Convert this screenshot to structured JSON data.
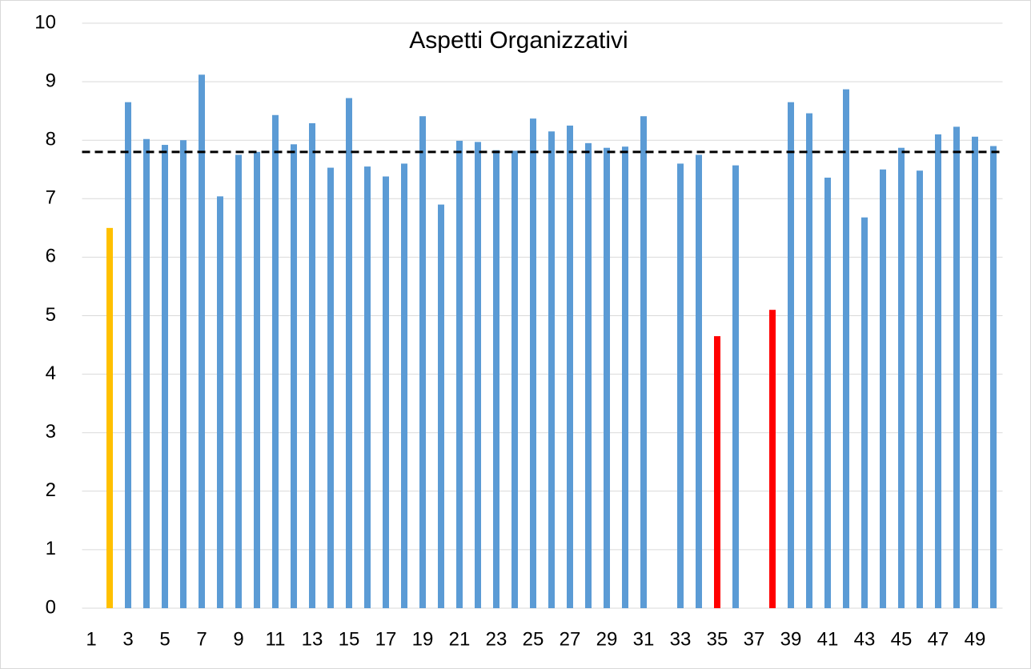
{
  "chart_data": {
    "type": "bar",
    "title": "Aspetti Organizzativi",
    "categories": [
      "1",
      null,
      "3",
      null,
      "5",
      null,
      "7",
      null,
      "9",
      null,
      "11",
      null,
      "13",
      null,
      "15",
      null,
      "17",
      null,
      "19",
      null,
      "21",
      null,
      "23",
      null,
      "25",
      null,
      "27",
      null,
      "29",
      null,
      "31",
      null,
      "33",
      null,
      "35",
      null,
      "37",
      null,
      "39",
      null,
      "41",
      null,
      "43",
      null,
      "45",
      null,
      "47",
      null,
      "49",
      null
    ],
    "values": [
      null,
      6.5,
      8.65,
      8.02,
      7.92,
      8.0,
      9.12,
      7.04,
      7.75,
      7.8,
      8.43,
      7.93,
      8.29,
      7.53,
      8.72,
      7.55,
      7.38,
      7.6,
      8.41,
      6.9,
      7.99,
      7.97,
      7.83,
      7.82,
      8.37,
      8.15,
      8.25,
      7.95,
      7.87,
      7.89,
      8.41,
      null,
      7.6,
      7.75,
      4.65,
      7.57,
      null,
      5.1,
      8.65,
      8.46,
      7.36,
      8.87,
      6.68,
      7.5,
      7.87,
      7.48,
      8.1,
      8.23,
      8.06,
      7.9
    ],
    "colors": [
      "#5b9bd5",
      "#ffc000",
      "#5b9bd5",
      "#5b9bd5",
      "#5b9bd5",
      "#5b9bd5",
      "#5b9bd5",
      "#5b9bd5",
      "#5b9bd5",
      "#5b9bd5",
      "#5b9bd5",
      "#5b9bd5",
      "#5b9bd5",
      "#5b9bd5",
      "#5b9bd5",
      "#5b9bd5",
      "#5b9bd5",
      "#5b9bd5",
      "#5b9bd5",
      "#5b9bd5",
      "#5b9bd5",
      "#5b9bd5",
      "#5b9bd5",
      "#5b9bd5",
      "#5b9bd5",
      "#5b9bd5",
      "#5b9bd5",
      "#5b9bd5",
      "#5b9bd5",
      "#5b9bd5",
      "#5b9bd5",
      "#5b9bd5",
      "#5b9bd5",
      "#5b9bd5",
      "#ff0000",
      "#5b9bd5",
      "#5b9bd5",
      "#ff0000",
      "#5b9bd5",
      "#5b9bd5",
      "#5b9bd5",
      "#5b9bd5",
      "#5b9bd5",
      "#5b9bd5",
      "#5b9bd5",
      "#5b9bd5",
      "#5b9bd5",
      "#5b9bd5",
      "#5b9bd5",
      "#5b9bd5"
    ],
    "reference_line": 7.8,
    "ylim": [
      0,
      10
    ],
    "yticks": [
      0,
      1,
      2,
      3,
      4,
      5,
      6,
      7,
      8,
      9,
      10
    ],
    "grid": true
  }
}
